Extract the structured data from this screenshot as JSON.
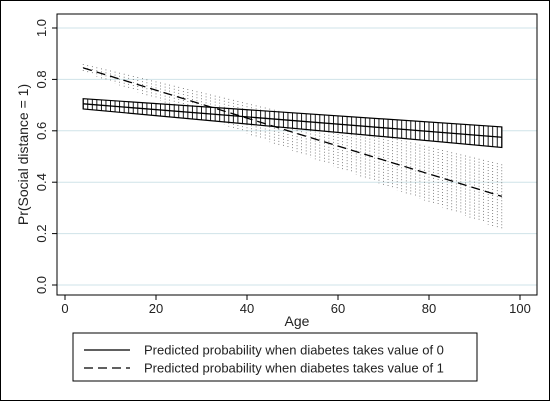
{
  "chart_data": {
    "type": "line",
    "xlabel": "Age",
    "ylabel": "Pr(Social distance = 1)",
    "xlim": [
      0,
      100
    ],
    "ylim": [
      0,
      1
    ],
    "x_ticks": [
      "0",
      "20",
      "40",
      "60",
      "80",
      "100"
    ],
    "y_ticks": [
      "0.0",
      "0.2",
      "0.4",
      "0.6",
      "0.8",
      "1.0"
    ],
    "grid": "horizontal",
    "legend_position": "bottom",
    "series": [
      {
        "name": "Predicted probability when diabetes takes value of 0",
        "line_style": "solid",
        "band_style": "vertical-bars",
        "x": [
          4,
          96
        ],
        "y": [
          0.705,
          0.575
        ],
        "ci_lower": [
          0.685,
          0.535
        ],
        "ci_upper": [
          0.725,
          0.615
        ]
      },
      {
        "name": "Predicted probability when diabetes takes value of 1",
        "line_style": "dashed",
        "band_style": "dotted",
        "x": [
          4,
          96
        ],
        "y": [
          0.845,
          0.345
        ],
        "ci_lower": [
          0.83,
          0.215
        ],
        "ci_upper": [
          0.86,
          0.47
        ]
      }
    ],
    "colors": {
      "frame": "#000000",
      "grid": "#cfe3e8",
      "band_dots": "#555555"
    }
  }
}
